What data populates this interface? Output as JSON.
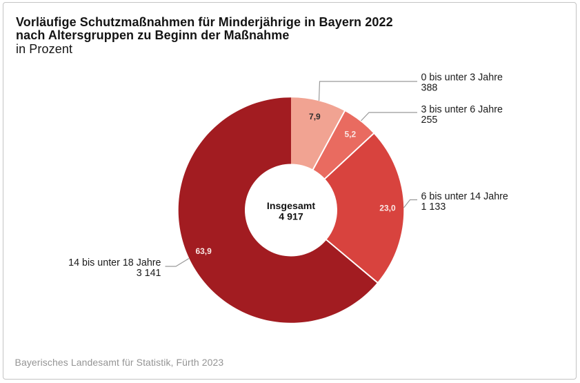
{
  "title": {
    "line1": "Vorläufige Schutzmaßnahmen für Minderjährige in Bayern 2022",
    "line2": "nach Altersgruppen zu Beginn der Maßnahme",
    "line3": "in Prozent"
  },
  "footer": {
    "source": "Bayerisches Landesamt für Statistik, Fürth 2023"
  },
  "chart_data": {
    "type": "pie",
    "subtype": "donut",
    "title": "Vorläufige Schutzmaßnahmen für Minderjährige in Bayern 2022 nach Altersgruppen zu Beginn der Maßnahme",
    "unit": "in Prozent",
    "start_angle_deg": 0,
    "direction": "clockwise",
    "legend": "none",
    "center_label": {
      "title": "Insgesamt",
      "value": "4 917"
    },
    "total": 4917,
    "slices": [
      {
        "label": "0 bis unter 3 Jahre",
        "count": "388",
        "percent": 7.9,
        "percent_label": "7,9",
        "color": "#f1a392",
        "value_text_color": "#2e2e2e"
      },
      {
        "label": "3 bis unter 6 Jahre",
        "count": "255",
        "percent": 5.2,
        "percent_label": "5,2",
        "color": "#e96b60",
        "value_text_color": "#fae9e6"
      },
      {
        "label": "6 bis unter 14 Jahre",
        "count": "1 133",
        "percent": 23.0,
        "percent_label": "23,0",
        "color": "#d8433e",
        "value_text_color": "#fae9e6"
      },
      {
        "label": "14 bis unter 18 Jahre",
        "count": "3 141",
        "percent": 63.9,
        "percent_label": "63,9",
        "color": "#a21c21",
        "value_text_color": "#fae9e6"
      }
    ]
  }
}
